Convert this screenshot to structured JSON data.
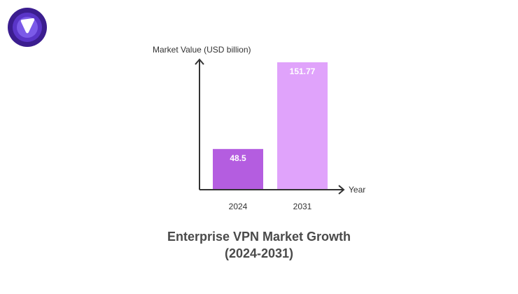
{
  "brand": {
    "logo": "PureVPN logo",
    "colors": [
      "#3b1d8f",
      "#5a35c8",
      "#7b5ae8"
    ]
  },
  "chart_data": {
    "type": "bar",
    "title_line1": "Enterprise VPN Market Growth",
    "title_line2": "(2024-2031)",
    "xlabel": "Year",
    "ylabel": "Market Value (USD billion)",
    "categories": [
      "2024",
      "2031"
    ],
    "values": [
      48.5,
      151.77
    ],
    "data_labels": [
      "48.5",
      "151.77"
    ],
    "colors": [
      "#b45de0",
      "#e0a3fb"
    ],
    "ylim": [
      0,
      151.77
    ],
    "grid": false,
    "legend": "none"
  }
}
